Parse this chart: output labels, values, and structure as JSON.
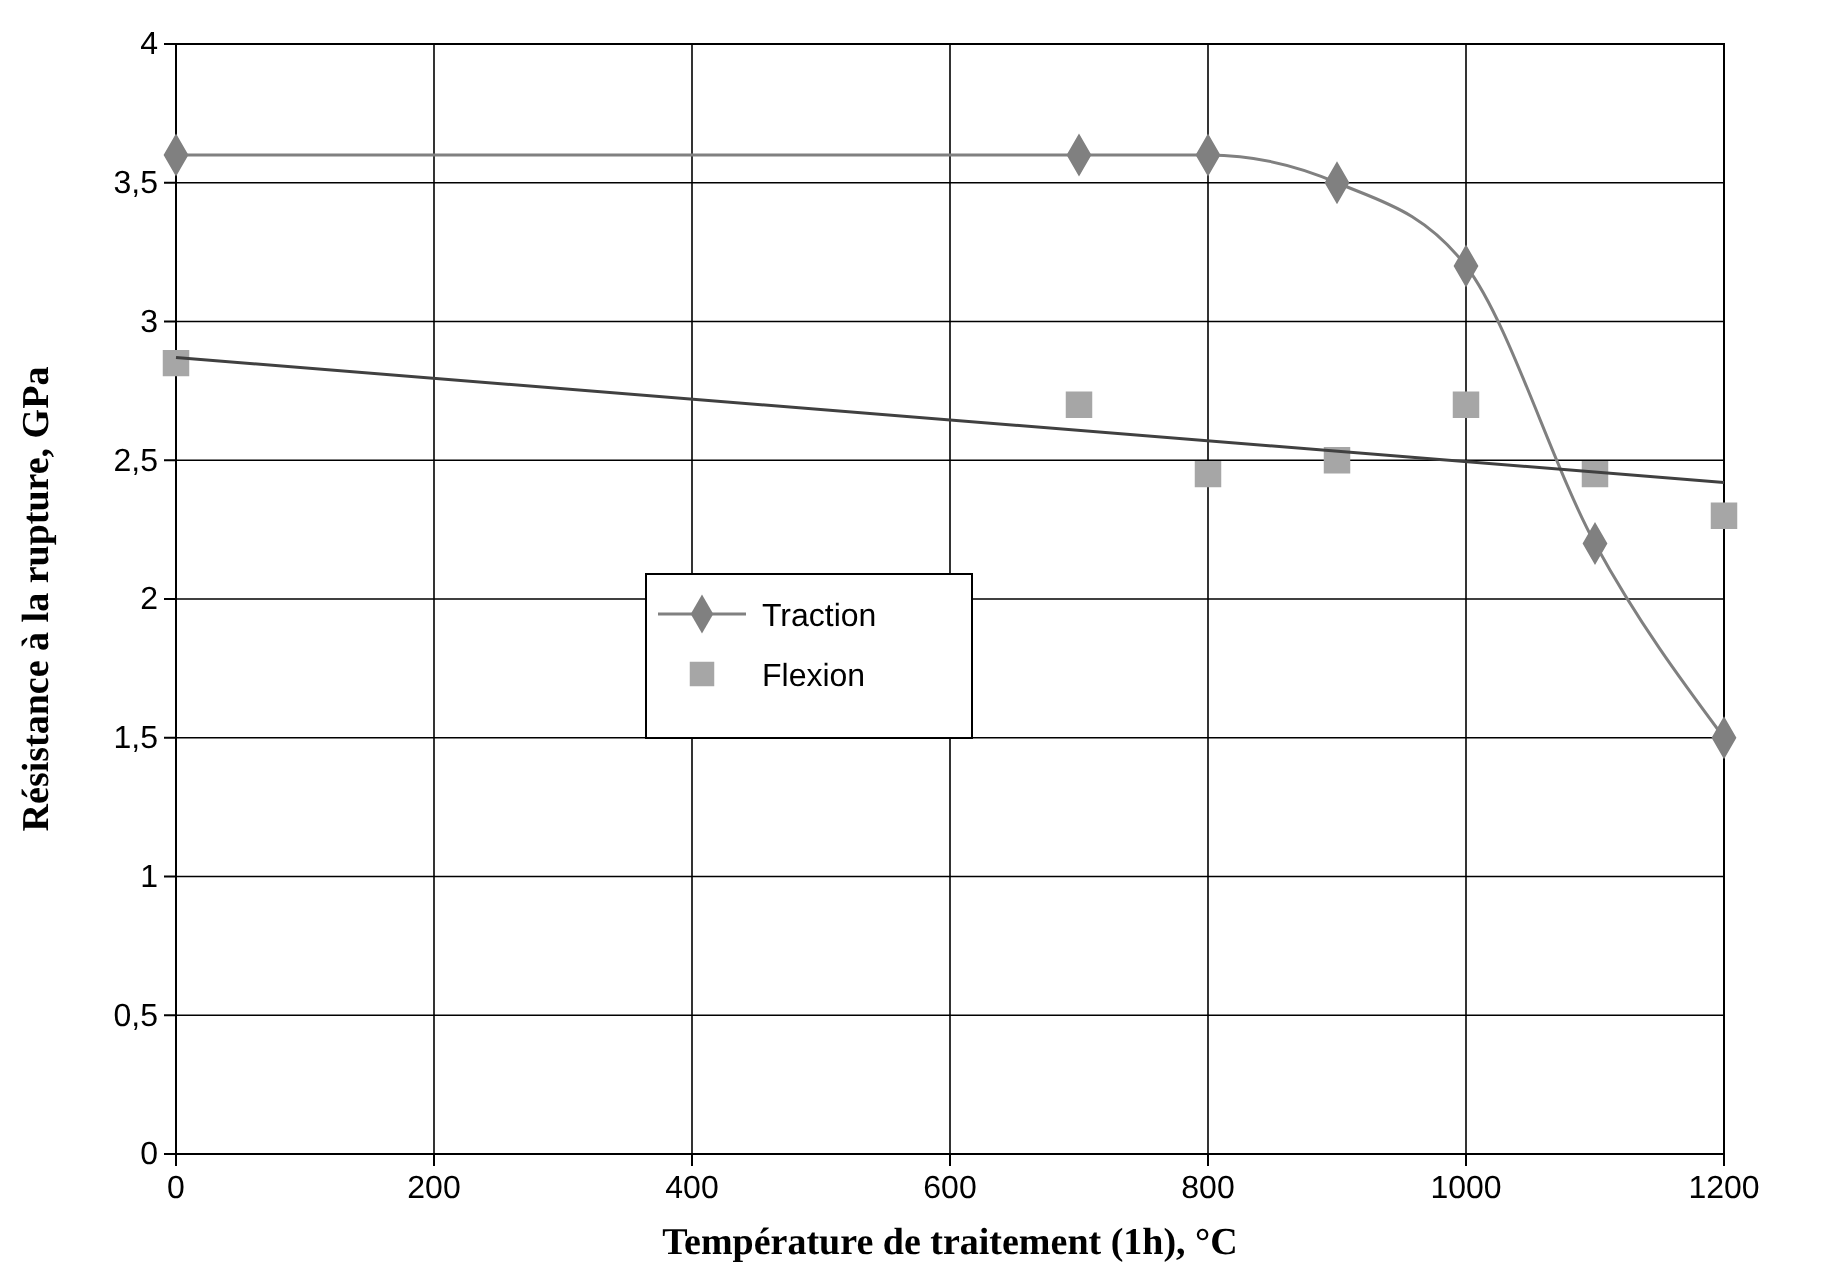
{
  "chart_data": {
    "type": "line",
    "xlabel": "Température de traitement (1h), °C",
    "ylabel": "Résistance à la rupture, GPa",
    "xlim": [
      0,
      1200
    ],
    "xticks": [
      0,
      200,
      400,
      600,
      800,
      1000,
      1200
    ],
    "ylim": [
      0,
      4
    ],
    "yticks": [
      0,
      {
        "value": 0.5,
        "label": "0,5"
      },
      1,
      {
        "value": 1.5,
        "label": "1,5"
      },
      2,
      {
        "value": 2.5,
        "label": "2,5"
      },
      3,
      {
        "value": 3.5,
        "label": "3,5"
      },
      4
    ],
    "grid": true,
    "legend": "left",
    "series": [
      {
        "name": "Traction",
        "marker": "diamond",
        "color": "#808080",
        "x": [
          0,
          700,
          800,
          900,
          1000,
          1100,
          1200
        ],
        "values": [
          3.6,
          3.6,
          3.6,
          3.5,
          3.2,
          2.2,
          1.5
        ]
      },
      {
        "name": "Flexion",
        "type": "scatter",
        "marker": "square",
        "color": "#a6a6a6",
        "x": [
          0,
          700,
          800,
          900,
          1000,
          1100,
          1200
        ],
        "values": [
          2.85,
          2.7,
          2.45,
          2.5,
          2.7,
          2.45,
          2.3
        ]
      },
      {
        "marker": "none",
        "color": "#404040",
        "x": [
          0,
          1200
        ],
        "values": [
          2.87,
          2.42
        ]
      }
    ]
  }
}
